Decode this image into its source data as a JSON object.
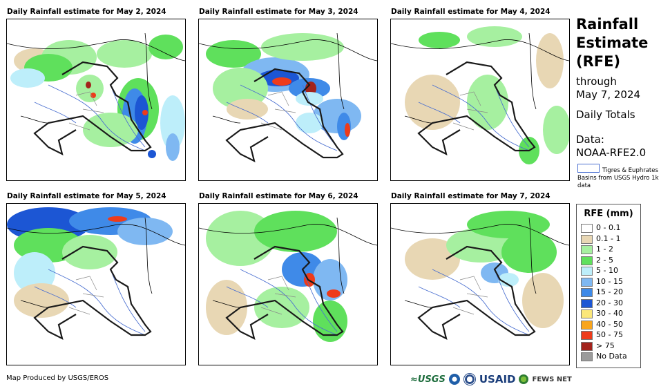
{
  "panels": [
    {
      "title": "Daily Rainfall estimate for May 2, 2024"
    },
    {
      "title": "Daily Rainfall estimate for May 3, 2024"
    },
    {
      "title": "Daily Rainfall estimate for May 4, 2024"
    },
    {
      "title": "Daily Rainfall estimate for May 5, 2024"
    },
    {
      "title": "Daily Rainfall estimate for May 6, 2024"
    },
    {
      "title": "Daily Rainfall estimate for May 7, 2024"
    }
  ],
  "side": {
    "title_lines": [
      "Rainfall",
      "Estimate",
      "(RFE)"
    ],
    "through": "through",
    "date": "May 7, 2024",
    "totals": "Daily Totals",
    "data_label": "Data:",
    "data_source": "NOAA-RFE2.0",
    "basin_legend": "Tigres & Euphrates Basins from USGS Hydro 1k data"
  },
  "legend": {
    "title": "RFE (mm)",
    "items": [
      {
        "label": "0 - 0.1",
        "color": "#ffffff"
      },
      {
        "label": "0.1 - 1",
        "color": "#e8d7b4"
      },
      {
        "label": "1 - 2",
        "color": "#a6f0a0"
      },
      {
        "label": "2 - 5",
        "color": "#5fe05c"
      },
      {
        "label": "5 - 10",
        "color": "#bdeefa"
      },
      {
        "label": "10 - 15",
        "color": "#7fb8f2"
      },
      {
        "label": "15 - 20",
        "color": "#3f8ae8"
      },
      {
        "label": "20 - 30",
        "color": "#1c56d4"
      },
      {
        "label": "30 - 40",
        "color": "#fbe77a"
      },
      {
        "label": "40 - 50",
        "color": "#f9a51e"
      },
      {
        "label": "50 - 75",
        "color": "#ee3b1a"
      },
      {
        "label": "> 75",
        "color": "#a3231c"
      },
      {
        "label": "No Data",
        "color": "#9b9b9b"
      }
    ]
  },
  "footer": {
    "credit": "Map Produced by USGS/EROS"
  },
  "logos": {
    "usgs": "≈USGS",
    "usaid": "USAID",
    "fews": "FEWS NET"
  }
}
